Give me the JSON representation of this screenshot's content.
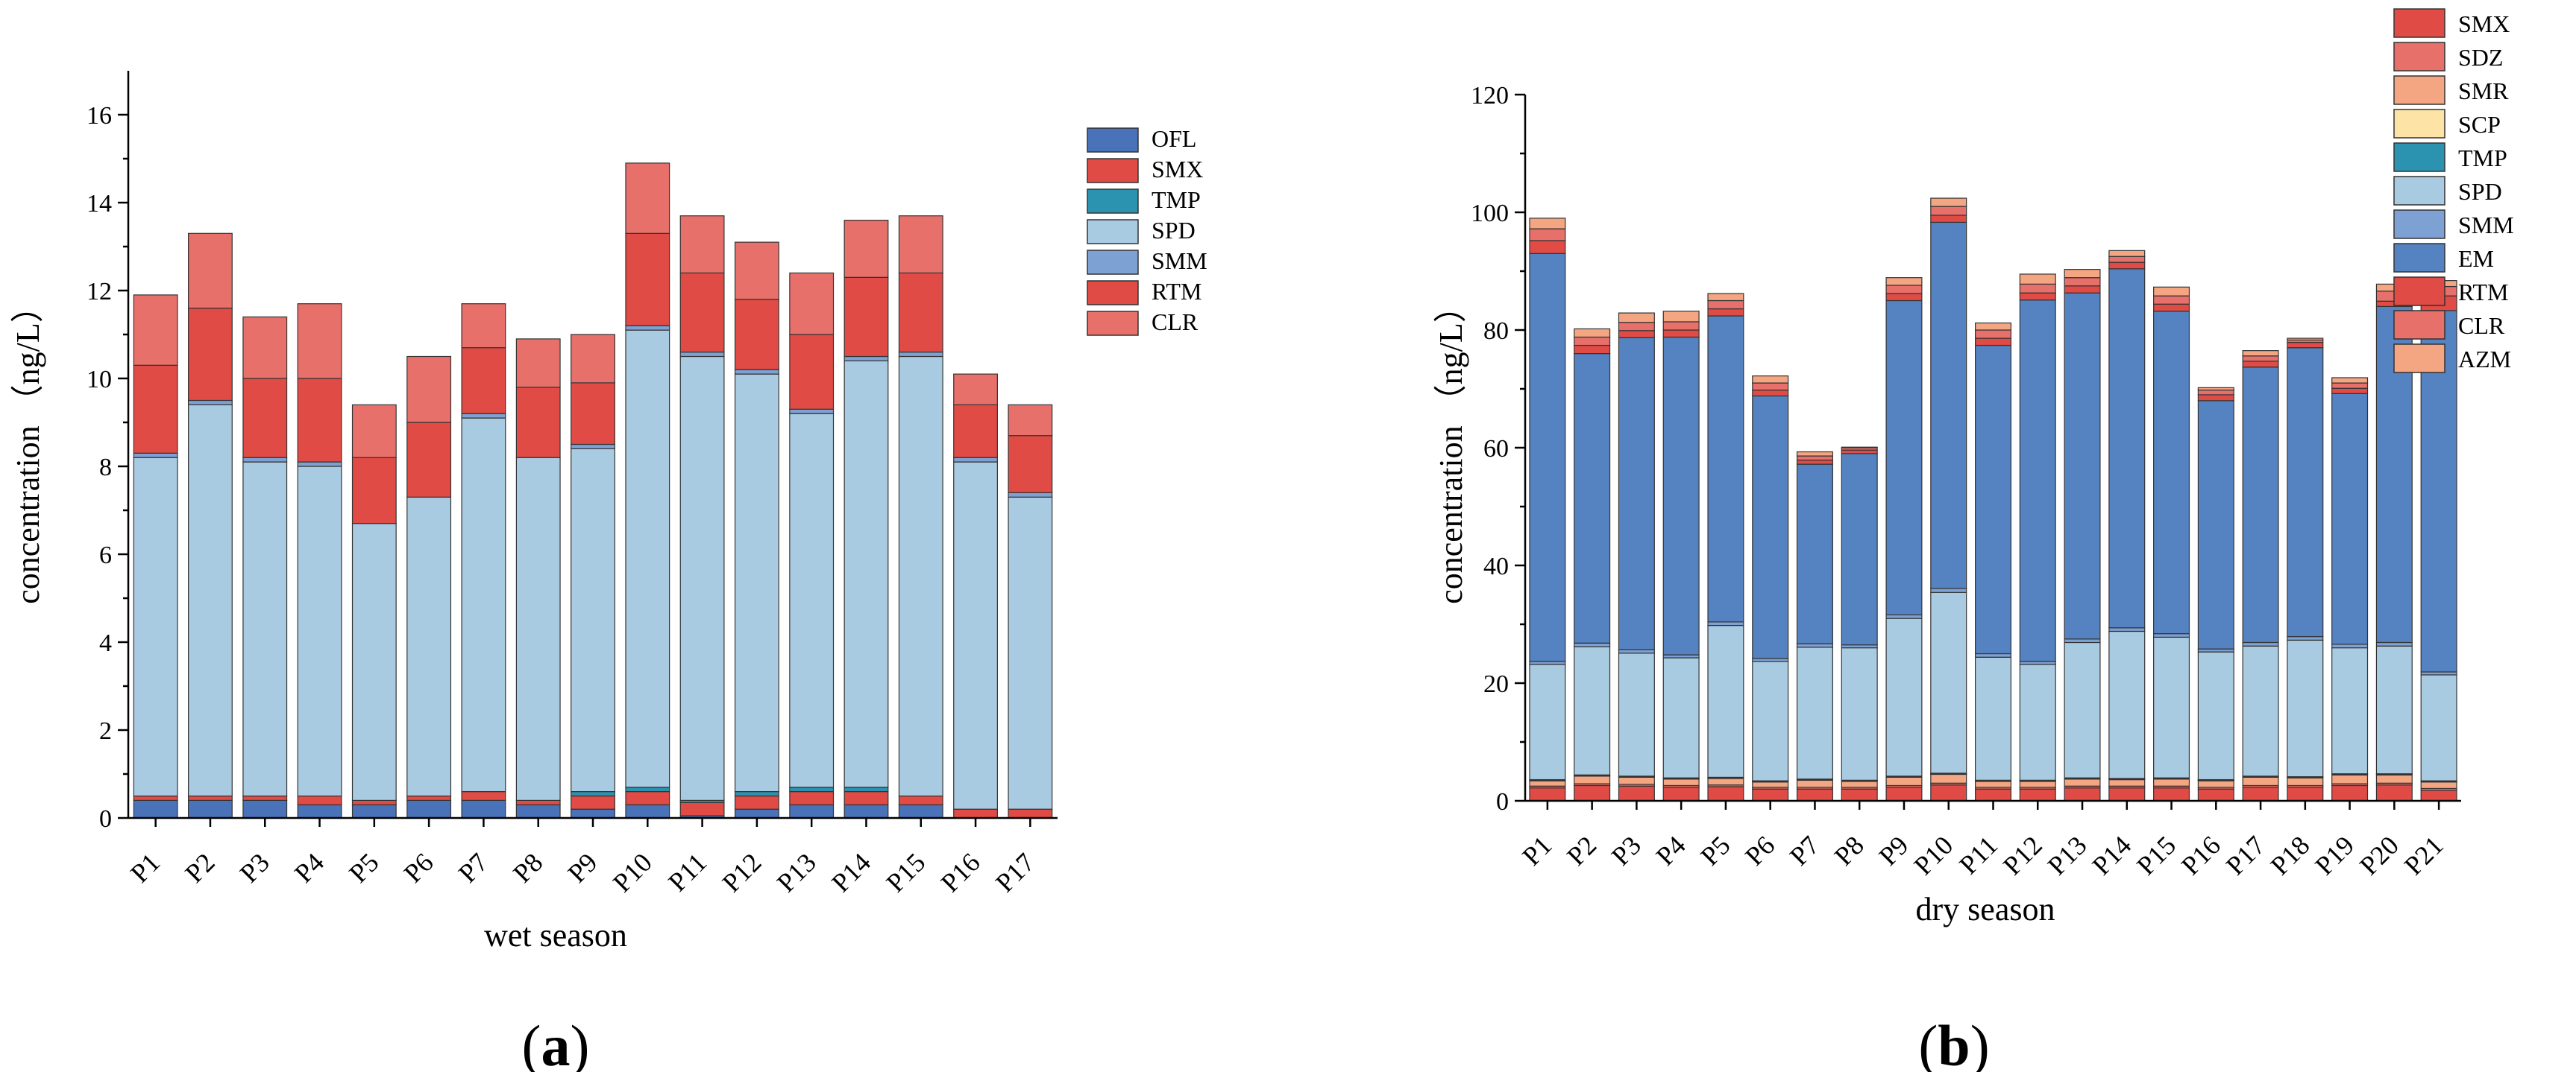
{
  "chart_data": [
    {
      "type": "bar",
      "stacked": true,
      "panel_label": "a",
      "xlabel": "wet season",
      "ylabel": "concentration （ng/L）",
      "ylim": [
        0,
        17
      ],
      "yticks": [
        0,
        2,
        4,
        6,
        8,
        10,
        12,
        14,
        16
      ],
      "legend_position": "right",
      "categories": [
        "P1",
        "P2",
        "P3",
        "P4",
        "P5",
        "P6",
        "P7",
        "P8",
        "P9",
        "P10",
        "P11",
        "P12",
        "P13",
        "P14",
        "P15",
        "P16",
        "P17"
      ],
      "series": [
        {
          "name": "OFL",
          "color": "#4a72b8",
          "values": [
            0.4,
            0.4,
            0.4,
            0.3,
            0.3,
            0.4,
            0.4,
            0.3,
            0.2,
            0.3,
            0.05,
            0.2,
            0.3,
            0.3,
            0.3,
            0.0,
            0.0
          ]
        },
        {
          "name": "SMX",
          "color": "#e04b45",
          "values": [
            0.1,
            0.1,
            0.1,
            0.2,
            0.1,
            0.1,
            0.2,
            0.1,
            0.3,
            0.3,
            0.3,
            0.3,
            0.3,
            0.3,
            0.2,
            0.2,
            0.2
          ]
        },
        {
          "name": "TMP",
          "color": "#2b93b0",
          "values": [
            0.0,
            0.0,
            0.0,
            0.0,
            0.0,
            0.0,
            0.0,
            0.0,
            0.1,
            0.1,
            0.05,
            0.1,
            0.1,
            0.1,
            0.0,
            0.0,
            0.0
          ]
        },
        {
          "name": "SPD",
          "color": "#a9cbe2",
          "values": [
            7.7,
            8.9,
            7.6,
            7.5,
            6.3,
            6.8,
            8.5,
            7.8,
            7.8,
            10.4,
            10.1,
            9.5,
            8.5,
            9.7,
            10.0,
            7.9,
            7.1
          ]
        },
        {
          "name": "SMM",
          "color": "#7ea1d3",
          "values": [
            0.1,
            0.1,
            0.1,
            0.1,
            0.0,
            0.0,
            0.1,
            0.0,
            0.1,
            0.1,
            0.1,
            0.1,
            0.1,
            0.1,
            0.1,
            0.1,
            0.1
          ]
        },
        {
          "name": "RTM",
          "color": "#e04b45",
          "values": [
            2.0,
            2.1,
            1.8,
            1.9,
            1.5,
            1.7,
            1.5,
            1.6,
            1.4,
            2.1,
            1.8,
            1.6,
            1.7,
            1.8,
            1.8,
            1.2,
            1.3
          ]
        },
        {
          "name": "CLR",
          "color": "#e8706b",
          "values": [
            1.6,
            1.7,
            1.4,
            1.7,
            1.2,
            1.5,
            1.0,
            1.1,
            1.1,
            1.6,
            1.3,
            1.3,
            1.4,
            1.3,
            1.3,
            0.7,
            0.7
          ]
        }
      ]
    },
    {
      "type": "bar",
      "stacked": true,
      "panel_label": "b",
      "xlabel": "dry season",
      "ylabel": "concentration （ng/L）",
      "ylim": [
        0,
        120
      ],
      "yticks": [
        0,
        20,
        40,
        60,
        80,
        100,
        120
      ],
      "legend_position": "top-right",
      "categories": [
        "P1",
        "P2",
        "P3",
        "P4",
        "P5",
        "P6",
        "P7",
        "P8",
        "P9",
        "P10",
        "P11",
        "P12",
        "P13",
        "P14",
        "P15",
        "P16",
        "P17",
        "P18",
        "P19",
        "P20",
        "P21"
      ],
      "series": [
        {
          "name": "SMX",
          "color": "#e04b45",
          "values": [
            2.2,
            2.6,
            2.5,
            2.3,
            2.4,
            2.0,
            2.0,
            2.0,
            2.3,
            2.7,
            2.0,
            2.0,
            2.2,
            2.2,
            2.2,
            2.0,
            2.3,
            2.3,
            2.6,
            2.7,
            1.8
          ]
        },
        {
          "name": "SDZ",
          "color": "#e8706b",
          "values": [
            0.3,
            0.3,
            0.3,
            0.3,
            0.3,
            0.3,
            0.3,
            0.3,
            0.3,
            0.3,
            0.3,
            0.3,
            0.3,
            0.3,
            0.3,
            0.3,
            0.3,
            0.3,
            0.3,
            0.3,
            0.3
          ]
        },
        {
          "name": "SMR",
          "color": "#f4a582",
          "values": [
            0.9,
            1.3,
            1.2,
            1.1,
            1.1,
            0.9,
            1.2,
            1.0,
            1.4,
            1.5,
            1.0,
            1.0,
            1.2,
            1.1,
            1.2,
            1.1,
            1.4,
            1.3,
            1.5,
            1.4,
            1.1
          ]
        },
        {
          "name": "SCP",
          "color": "#fde4a6",
          "values": [
            0.1,
            0.1,
            0.1,
            0.1,
            0.1,
            0.1,
            0.1,
            0.1,
            0.1,
            0.1,
            0.1,
            0.1,
            0.1,
            0.1,
            0.1,
            0.1,
            0.1,
            0.1,
            0.1,
            0.1,
            0.1
          ]
        },
        {
          "name": "TMP",
          "color": "#2b93b0",
          "values": [
            0.1,
            0.1,
            0.1,
            0.1,
            0.1,
            0.1,
            0.1,
            0.1,
            0.1,
            0.1,
            0.1,
            0.1,
            0.1,
            0.1,
            0.1,
            0.1,
            0.1,
            0.1,
            0.1,
            0.1,
            0.1
          ]
        },
        {
          "name": "SPD",
          "color": "#a9cbe2",
          "values": [
            19.6,
            21.8,
            20.9,
            20.4,
            25.8,
            20.3,
            22.4,
            22.5,
            26.8,
            30.7,
            20.9,
            19.7,
            23.0,
            25.0,
            23.9,
            21.7,
            22.1,
            23.2,
            21.4,
            21.7,
            18.0
          ]
        },
        {
          "name": "SMM",
          "color": "#7ea1d3",
          "values": [
            0.5,
            0.6,
            0.6,
            0.5,
            0.6,
            0.5,
            0.6,
            0.5,
            0.6,
            0.7,
            0.6,
            0.5,
            0.6,
            0.6,
            0.6,
            0.5,
            0.6,
            0.6,
            0.6,
            0.6,
            0.5
          ]
        },
        {
          "name": "EM",
          "color": "#5582c0",
          "values": [
            69.3,
            49.2,
            53.0,
            54.0,
            52.0,
            44.6,
            30.5,
            32.5,
            53.4,
            62.2,
            52.4,
            61.4,
            58.8,
            61.0,
            54.8,
            42.2,
            46.8,
            49.1,
            42.6,
            57.1,
            61.4
          ]
        },
        {
          "name": "RTM",
          "color": "#e04b45",
          "values": [
            2.2,
            1.4,
            1.2,
            1.2,
            1.2,
            1.0,
            0.7,
            0.6,
            1.2,
            1.2,
            1.2,
            1.2,
            1.2,
            1.1,
            1.2,
            1.0,
            1.0,
            0.9,
            0.9,
            0.9,
            2.5
          ]
        },
        {
          "name": "CLR",
          "color": "#e8706b",
          "values": [
            2.0,
            1.4,
            1.4,
            1.4,
            1.4,
            1.2,
            0.7,
            0.4,
            1.4,
            1.5,
            1.4,
            1.5,
            1.4,
            1.0,
            1.4,
            0.8,
            0.9,
            0.4,
            0.9,
            1.7,
            1.6
          ]
        },
        {
          "name": "AZM",
          "color": "#f4a582",
          "values": [
            1.8,
            1.4,
            1.6,
            1.8,
            1.2,
            1.2,
            0.7,
            0.1,
            1.3,
            1.4,
            1.2,
            1.7,
            1.4,
            1.0,
            1.5,
            0.4,
            0.9,
            0.3,
            0.9,
            1.2,
            1.0
          ]
        }
      ]
    }
  ]
}
